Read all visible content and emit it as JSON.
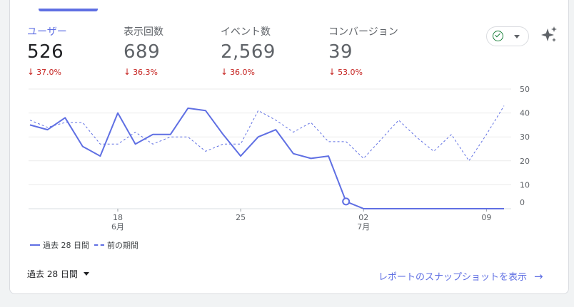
{
  "metrics": [
    {
      "label": "ユーザー",
      "value": "526",
      "change": "37.0%"
    },
    {
      "label": "表示回数",
      "value": "689",
      "change": "36.3%"
    },
    {
      "label": "イベント数",
      "value": "2,569",
      "change": "36.0%"
    },
    {
      "label": "コンバージョン",
      "value": "39",
      "change": "53.0%"
    }
  ],
  "change_arrow": "↓",
  "colors": {
    "accent": "#5f6fe3",
    "negative": "#c5221f",
    "ok": "#188038"
  },
  "icons": {
    "status": "check-circle-icon",
    "insights": "sparkle-icon"
  },
  "legend": {
    "current": "過去 28 日間",
    "previous": "前の期間"
  },
  "date_range": "過去 28 日間",
  "snapshot_link": "レポートのスナップショットを表示",
  "chart_data": {
    "type": "line",
    "y_ticks": [
      "50",
      "40",
      "30",
      "20",
      "10",
      "0"
    ],
    "ylim": [
      0,
      50
    ],
    "x_ticks": [
      {
        "day": "18",
        "month": "6月",
        "index": 5
      },
      {
        "day": "25",
        "month": "",
        "index": 12
      },
      {
        "day": "02",
        "month": "7月",
        "index": 19
      },
      {
        "day": "09",
        "month": "",
        "index": 26
      }
    ],
    "series": [
      {
        "name": "過去 28 日間",
        "style": "solid",
        "values": [
          35,
          33,
          38,
          26,
          22,
          40,
          27,
          31,
          31,
          42,
          41,
          31,
          22,
          30,
          33,
          23,
          21,
          22,
          3,
          0,
          0,
          0,
          0,
          0,
          0,
          0,
          0,
          0
        ],
        "marker_index": 18
      },
      {
        "name": "前の期間",
        "style": "dashed",
        "values": [
          37,
          34,
          36,
          36,
          27,
          27,
          32,
          27,
          30,
          30,
          24,
          27,
          27,
          41,
          37,
          32,
          36,
          28,
          28,
          21,
          29,
          37,
          30,
          24,
          31,
          20,
          31,
          43
        ]
      }
    ]
  }
}
